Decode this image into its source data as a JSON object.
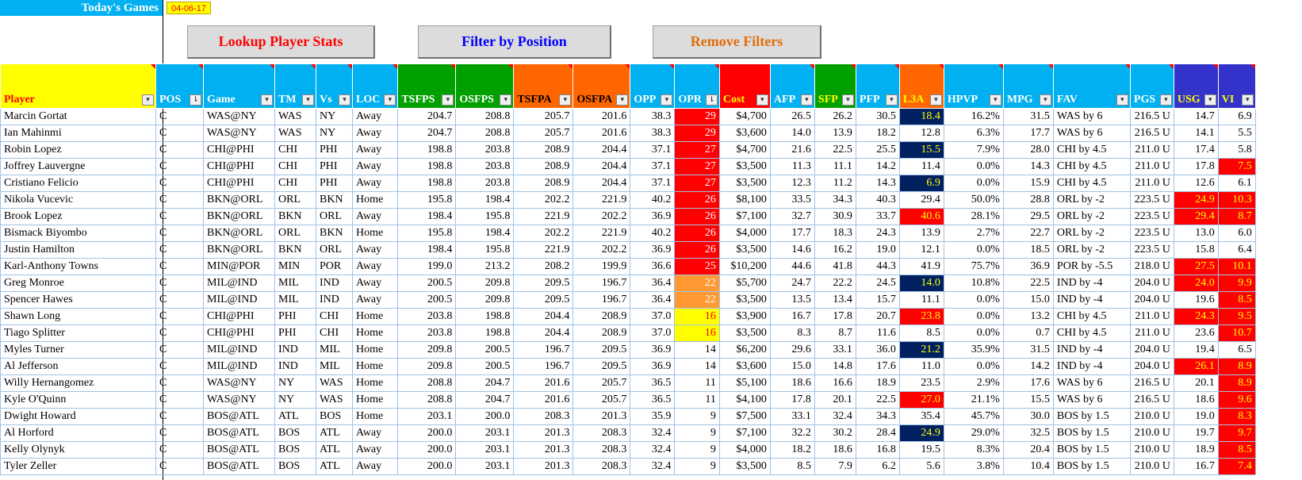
{
  "header": {
    "title": "Today's Games",
    "date": "04-06-17"
  },
  "buttons": {
    "lookup": "Lookup Player Stats",
    "filter": "Filter by Position",
    "remove": "Remove Filters"
  },
  "colors": {
    "blue": "#00B0F0",
    "yellow": "#FFFF00",
    "green": "#00A000",
    "orange": "#FF6600",
    "red": "#FF0000",
    "navy": "#002060",
    "light_orange": "#FF9933",
    "dark_red": "#C00000",
    "purple": "#3333CC",
    "amber": "#FFC000"
  },
  "table": {
    "columns": [
      {
        "label": "Player",
        "bg": "#FFFF00",
        "fg": "#FF0000",
        "w": 196,
        "align": "txt",
        "fbtn": "▾"
      },
      {
        "label": "POS",
        "bg": "#00B0F0",
        "fg": "#FFFFFF",
        "w": 60,
        "align": "txt",
        "fbtn": "⇂"
      },
      {
        "label": "Game",
        "bg": "#00B0F0",
        "fg": "#FFFFFF",
        "w": 90,
        "align": "txt",
        "fbtn": "▾"
      },
      {
        "label": "TM",
        "bg": "#00B0F0",
        "fg": "#FFFFFF",
        "w": 52,
        "align": "txt",
        "fbtn": "▾"
      },
      {
        "label": "Vs",
        "bg": "#00B0F0",
        "fg": "#FFFFFF",
        "w": 46,
        "align": "txt",
        "fbtn": "▾"
      },
      {
        "label": "LOC",
        "bg": "#00B0F0",
        "fg": "#FFFFFF",
        "w": 56,
        "align": "txt",
        "fbtn": "▾"
      },
      {
        "label": "TSFPS",
        "bg": "#00A000",
        "fg": "#FFFFFF",
        "w": 73,
        "align": "num",
        "fbtn": "▾"
      },
      {
        "label": "OSFPS",
        "bg": "#00A000",
        "fg": "#FFFFFF",
        "w": 73,
        "align": "num",
        "fbtn": "▾"
      },
      {
        "label": "TSFPA",
        "bg": "#FF6600",
        "fg": "#000000",
        "w": 75,
        "align": "num",
        "fbtn": "▾"
      },
      {
        "label": "OSFPA",
        "bg": "#FF6600",
        "fg": "#000000",
        "w": 72,
        "align": "num",
        "fbtn": "▾"
      },
      {
        "label": "OPP",
        "bg": "#00B0F0",
        "fg": "#FFFFFF",
        "w": 56,
        "align": "num",
        "fbtn": "▾"
      },
      {
        "label": "OPR",
        "bg": "#00B0F0",
        "fg": "#FFFFFF",
        "w": 56,
        "align": "num",
        "fbtn": "⇂"
      },
      {
        "label": "Cost",
        "bg": "#FF0000",
        "fg": "#FFFF00",
        "w": 64,
        "align": "num",
        "fbtn": "▾"
      },
      {
        "label": "AFP",
        "bg": "#00B0F0",
        "fg": "#FFFFFF",
        "w": 56,
        "align": "num",
        "fbtn": "▾"
      },
      {
        "label": "SFP",
        "bg": "#00A000",
        "fg": "#FFFF00",
        "w": 52,
        "align": "num",
        "fbtn": "▾"
      },
      {
        "label": "PFP",
        "bg": "#00B0F0",
        "fg": "#FFFFFF",
        "w": 55,
        "align": "num",
        "fbtn": "▾"
      },
      {
        "label": "L3A",
        "bg": "#FF6600",
        "fg": "#FFFF00",
        "w": 56,
        "align": "num",
        "fbtn": "▾"
      },
      {
        "label": "HPVP",
        "bg": "#00B0F0",
        "fg": "#FFFFFF",
        "w": 75,
        "align": "num",
        "fbtn": "▾"
      },
      {
        "label": "MPG",
        "bg": "#00B0F0",
        "fg": "#FFFFFF",
        "w": 63,
        "align": "num",
        "fbtn": "▾"
      },
      {
        "label": "FAV",
        "bg": "#00B0F0",
        "fg": "#FFFFFF",
        "w": 97,
        "align": "txt",
        "fbtn": "▾"
      },
      {
        "label": "PGS",
        "bg": "#00B0F0",
        "fg": "#FFFFFF",
        "w": 55,
        "align": "num",
        "fbtn": "▾"
      },
      {
        "label": "USG",
        "bg": "#3333CC",
        "fg": "#FFFF00",
        "w": 55,
        "align": "num",
        "fbtn": "▾"
      },
      {
        "label": "VI",
        "bg": "#3333CC",
        "fg": "#FFFF00",
        "w": 47,
        "align": "num",
        "fbtn": "▾"
      }
    ],
    "rows": [
      [
        "Marcin Gortat",
        "C",
        "WAS@NY",
        "WAS",
        "NY",
        "Away",
        "204.7",
        "208.8",
        "205.7",
        "201.6",
        "38.3",
        "29",
        "$4,700",
        "26.5",
        "26.2",
        "30.5",
        "18.4",
        "16.2%",
        "31.5",
        "WAS by 6",
        "216.5 U",
        "14.7",
        "6.9"
      ],
      [
        "Ian Mahinmi",
        "C",
        "WAS@NY",
        "WAS",
        "NY",
        "Away",
        "204.7",
        "208.8",
        "205.7",
        "201.6",
        "38.3",
        "29",
        "$3,600",
        "14.0",
        "13.9",
        "18.2",
        "12.8",
        "6.3%",
        "17.7",
        "WAS by 6",
        "216.5 U",
        "14.1",
        "5.5"
      ],
      [
        "Robin Lopez",
        "C",
        "CHI@PHI",
        "CHI",
        "PHI",
        "Away",
        "198.8",
        "203.8",
        "208.9",
        "204.4",
        "37.1",
        "27",
        "$4,700",
        "21.6",
        "22.5",
        "25.5",
        "15.5",
        "7.9%",
        "28.0",
        "CHI by 4.5",
        "211.0 U",
        "17.4",
        "5.8"
      ],
      [
        "Joffrey Lauvergne",
        "C",
        "CHI@PHI",
        "CHI",
        "PHI",
        "Away",
        "198.8",
        "203.8",
        "208.9",
        "204.4",
        "37.1",
        "27",
        "$3,500",
        "11.3",
        "11.1",
        "14.2",
        "11.4",
        "0.0%",
        "14.3",
        "CHI by 4.5",
        "211.0 U",
        "17.8",
        "7.5"
      ],
      [
        "Cristiano Felicio",
        "C",
        "CHI@PHI",
        "CHI",
        "PHI",
        "Away",
        "198.8",
        "203.8",
        "208.9",
        "204.4",
        "37.1",
        "27",
        "$3,500",
        "12.3",
        "11.2",
        "14.3",
        "6.9",
        "0.0%",
        "15.9",
        "CHI by 4.5",
        "211.0 U",
        "12.6",
        "6.1"
      ],
      [
        "Nikola Vucevic",
        "C",
        "BKN@ORL",
        "ORL",
        "BKN",
        "Home",
        "195.8",
        "198.4",
        "202.2",
        "221.9",
        "40.2",
        "26",
        "$8,100",
        "33.5",
        "34.3",
        "40.3",
        "29.4",
        "50.0%",
        "28.8",
        "ORL by -2",
        "223.5 U",
        "24.9",
        "10.3"
      ],
      [
        "Brook Lopez",
        "C",
        "BKN@ORL",
        "BKN",
        "ORL",
        "Away",
        "198.4",
        "195.8",
        "221.9",
        "202.2",
        "36.9",
        "26",
        "$7,100",
        "32.7",
        "30.9",
        "33.7",
        "40.6",
        "28.1%",
        "29.5",
        "ORL by -2",
        "223.5 U",
        "29.4",
        "8.7"
      ],
      [
        "Bismack Biyombo",
        "C",
        "BKN@ORL",
        "ORL",
        "BKN",
        "Home",
        "195.8",
        "198.4",
        "202.2",
        "221.9",
        "40.2",
        "26",
        "$4,000",
        "17.7",
        "18.3",
        "24.3",
        "13.9",
        "2.7%",
        "22.7",
        "ORL by -2",
        "223.5 U",
        "13.0",
        "6.0"
      ],
      [
        "Justin Hamilton",
        "C",
        "BKN@ORL",
        "BKN",
        "ORL",
        "Away",
        "198.4",
        "195.8",
        "221.9",
        "202.2",
        "36.9",
        "26",
        "$3,500",
        "14.6",
        "16.2",
        "19.0",
        "12.1",
        "0.0%",
        "18.5",
        "ORL by -2",
        "223.5 U",
        "15.8",
        "6.4"
      ],
      [
        "Karl-Anthony Towns",
        "C",
        "MIN@POR",
        "MIN",
        "POR",
        "Away",
        "199.0",
        "213.2",
        "208.2",
        "199.9",
        "36.6",
        "25",
        "$10,200",
        "44.6",
        "41.8",
        "44.3",
        "41.9",
        "75.7%",
        "36.9",
        "POR by -5.5",
        "218.0 U",
        "27.5",
        "10.1"
      ],
      [
        "Greg Monroe",
        "C",
        "MIL@IND",
        "MIL",
        "IND",
        "Away",
        "200.5",
        "209.8",
        "209.5",
        "196.7",
        "36.4",
        "22",
        "$5,700",
        "24.7",
        "22.2",
        "24.5",
        "14.0",
        "10.8%",
        "22.5",
        "IND by -4",
        "204.0 U",
        "24.0",
        "9.9"
      ],
      [
        "Spencer Hawes",
        "C",
        "MIL@IND",
        "MIL",
        "IND",
        "Away",
        "200.5",
        "209.8",
        "209.5",
        "196.7",
        "36.4",
        "22",
        "$3,500",
        "13.5",
        "13.4",
        "15.7",
        "11.1",
        "0.0%",
        "15.0",
        "IND by -4",
        "204.0 U",
        "19.6",
        "8.5"
      ],
      [
        "Shawn Long",
        "C",
        "CHI@PHI",
        "PHI",
        "CHI",
        "Home",
        "203.8",
        "198.8",
        "204.4",
        "208.9",
        "37.0",
        "16",
        "$3,900",
        "16.7",
        "17.8",
        "20.7",
        "23.8",
        "0.0%",
        "13.2",
        "CHI by 4.5",
        "211.0 U",
        "24.3",
        "9.5"
      ],
      [
        "Tiago Splitter",
        "C",
        "CHI@PHI",
        "PHI",
        "CHI",
        "Home",
        "203.8",
        "198.8",
        "204.4",
        "208.9",
        "37.0",
        "16",
        "$3,500",
        "8.3",
        "8.7",
        "11.6",
        "8.5",
        "0.0%",
        "0.7",
        "CHI by 4.5",
        "211.0 U",
        "23.6",
        "10.7"
      ],
      [
        "Myles Turner",
        "C",
        "MIL@IND",
        "IND",
        "MIL",
        "Home",
        "209.8",
        "200.5",
        "196.7",
        "209.5",
        "36.9",
        "14",
        "$6,200",
        "29.6",
        "33.1",
        "36.0",
        "21.2",
        "35.9%",
        "31.5",
        "IND by -4",
        "204.0 U",
        "19.4",
        "6.5"
      ],
      [
        "Al Jefferson",
        "C",
        "MIL@IND",
        "IND",
        "MIL",
        "Home",
        "209.8",
        "200.5",
        "196.7",
        "209.5",
        "36.9",
        "14",
        "$3,600",
        "15.0",
        "14.8",
        "17.6",
        "11.0",
        "0.0%",
        "14.2",
        "IND by -4",
        "204.0 U",
        "26.1",
        "8.9"
      ],
      [
        "Willy Hernangomez",
        "C",
        "WAS@NY",
        "NY",
        "WAS",
        "Home",
        "208.8",
        "204.7",
        "201.6",
        "205.7",
        "36.5",
        "11",
        "$5,100",
        "18.6",
        "16.6",
        "18.9",
        "23.5",
        "2.9%",
        "17.6",
        "WAS by 6",
        "216.5 U",
        "20.1",
        "8.9"
      ],
      [
        "Kyle O'Quinn",
        "C",
        "WAS@NY",
        "NY",
        "WAS",
        "Home",
        "208.8",
        "204.7",
        "201.6",
        "205.7",
        "36.5",
        "11",
        "$4,100",
        "17.8",
        "20.1",
        "22.5",
        "27.0",
        "21.1%",
        "15.5",
        "WAS by 6",
        "216.5 U",
        "18.6",
        "9.6"
      ],
      [
        "Dwight Howard",
        "C",
        "BOS@ATL",
        "ATL",
        "BOS",
        "Home",
        "203.1",
        "200.0",
        "208.3",
        "201.3",
        "35.9",
        "9",
        "$7,500",
        "33.1",
        "32.4",
        "34.3",
        "35.4",
        "45.7%",
        "30.0",
        "BOS by 1.5",
        "210.0 U",
        "19.0",
        "8.3"
      ],
      [
        "Al Horford",
        "C",
        "BOS@ATL",
        "BOS",
        "ATL",
        "Away",
        "200.0",
        "203.1",
        "201.3",
        "208.3",
        "32.4",
        "9",
        "$7,100",
        "32.2",
        "30.2",
        "28.4",
        "24.9",
        "29.0%",
        "32.5",
        "BOS by 1.5",
        "210.0 U",
        "19.7",
        "9.7"
      ],
      [
        "Kelly Olynyk",
        "C",
        "BOS@ATL",
        "BOS",
        "ATL",
        "Away",
        "200.0",
        "203.1",
        "201.3",
        "208.3",
        "32.4",
        "9",
        "$4,000",
        "18.2",
        "18.6",
        "16.8",
        "19.5",
        "8.3%",
        "20.4",
        "BOS by 1.5",
        "210.0 U",
        "18.9",
        "8.5"
      ],
      [
        "Tyler Zeller",
        "C",
        "BOS@ATL",
        "BOS",
        "ATL",
        "Away",
        "200.0",
        "203.1",
        "201.3",
        "208.3",
        "32.4",
        "9",
        "$3,500",
        "8.5",
        "7.9",
        "6.2",
        "5.6",
        "3.8%",
        "10.4",
        "BOS by 1.5",
        "210.0 U",
        "16.7",
        "7.4"
      ]
    ],
    "highlights": {
      "11": {
        "29": {
          "bg": "#FF0000",
          "fg": "#FFFFFF"
        },
        "27": {
          "bg": "#FF0000",
          "fg": "#FFFFFF"
        },
        "26": {
          "bg": "#FF0000",
          "fg": "#FFFFFF"
        },
        "25": {
          "bg": "#FF0000",
          "fg": "#FFFFFF"
        },
        "22": {
          "bg": "#FF9933",
          "fg": "#FFFFFF"
        },
        "16": {
          "bg": "#FFFF00",
          "fg": "#FF0000"
        }
      },
      "16": {
        "18.4": {
          "bg": "#002060",
          "fg": "#FFFF00"
        },
        "15.5": {
          "bg": "#002060",
          "fg": "#FFFF00"
        },
        "6.9": {
          "bg": "#002060",
          "fg": "#FFFF00"
        },
        "14.0": {
          "bg": "#002060",
          "fg": "#FFFF00"
        },
        "21.2": {
          "bg": "#002060",
          "fg": "#FFFF00"
        },
        "24.9": {
          "bg": "#002060",
          "fg": "#FFFF00"
        },
        "40.6": {
          "bg": "#FF0000",
          "fg": "#FFFF00"
        },
        "23.8": {
          "bg": "#FF0000",
          "fg": "#FFFF00"
        },
        "27.0": {
          "bg": "#FF0000",
          "fg": "#FFFF00"
        }
      },
      "21": {
        "24.9": {
          "bg": "#FF0000",
          "fg": "#FFFF00"
        },
        "29.4": {
          "bg": "#FF0000",
          "fg": "#FFFF00"
        },
        "27.5": {
          "bg": "#FF0000",
          "fg": "#FFFF00"
        },
        "24.0": {
          "bg": "#FF0000",
          "fg": "#FFFF00"
        },
        "24.3": {
          "bg": "#FF0000",
          "fg": "#FFFF00"
        },
        "26.1": {
          "bg": "#FF0000",
          "fg": "#FFFF00"
        }
      },
      "22": {
        "7.5": {
          "bg": "#FF0000",
          "fg": "#FFFF00"
        },
        "10.3": {
          "bg": "#FF0000",
          "fg": "#FFFF00"
        },
        "8.7": {
          "bg": "#FF0000",
          "fg": "#FFFF00"
        },
        "10.1": {
          "bg": "#FF0000",
          "fg": "#FFFF00"
        },
        "9.9": {
          "bg": "#FF0000",
          "fg": "#FFFF00"
        },
        "8.5": {
          "bg": "#FF0000",
          "fg": "#FFFF00"
        },
        "9.5": {
          "bg": "#FF0000",
          "fg": "#FFFF00"
        },
        "10.7": {
          "bg": "#FF0000",
          "fg": "#FFFF00"
        },
        "8.9": {
          "bg": "#FF0000",
          "fg": "#FFFF00"
        },
        "9.6": {
          "bg": "#FF0000",
          "fg": "#FFFF00"
        },
        "8.3": {
          "bg": "#FF0000",
          "fg": "#FFFF00"
        },
        "9.7": {
          "bg": "#FF0000",
          "fg": "#FFFF00"
        },
        "7.4": {
          "bg": "#FF0000",
          "fg": "#FFFF00"
        }
      }
    }
  }
}
